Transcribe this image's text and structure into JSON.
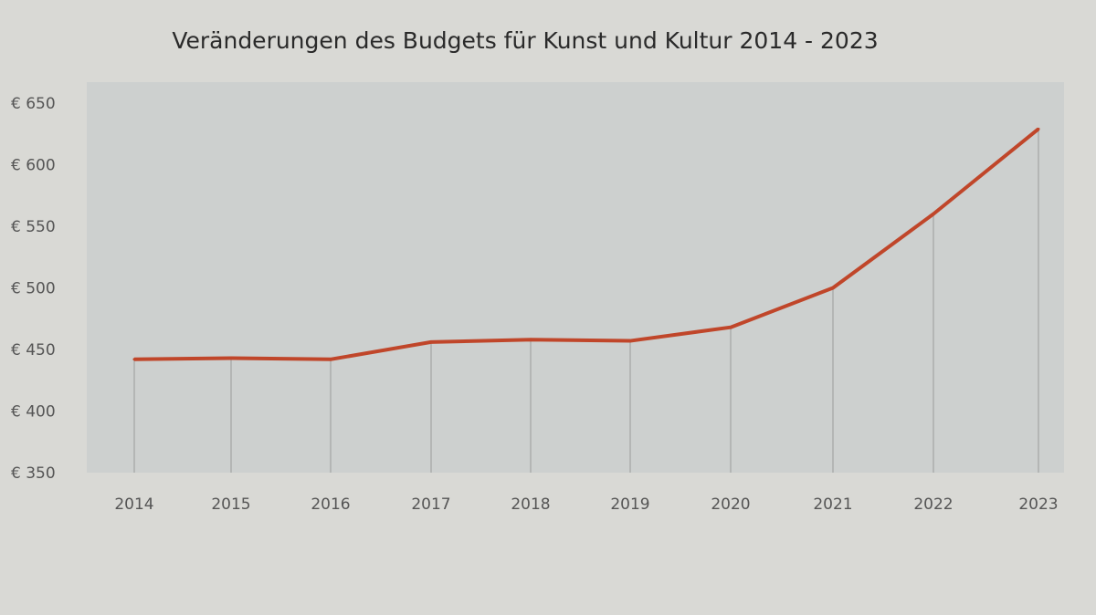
{
  "chart_data": {
    "type": "line",
    "title": "Veränderungen des Budgets für Kunst und Kultur 2014 - 2023",
    "xlabel": "",
    "ylabel": "",
    "categories": [
      "2014",
      "2015",
      "2016",
      "2017",
      "2018",
      "2019",
      "2020",
      "2021",
      "2022",
      "2023"
    ],
    "values": [
      442,
      443,
      442,
      456,
      458,
      457,
      468,
      500,
      560,
      629
    ],
    "ylim": [
      350,
      650
    ],
    "yticks": [
      350,
      400,
      450,
      500,
      550,
      600,
      650
    ],
    "ytick_labels": [
      "€ 350",
      "€ 400",
      "€ 450",
      "€ 500",
      "€ 550",
      "€ 600",
      "€ 650"
    ],
    "grid": "vertical drop lines at each category",
    "legend": "none",
    "line_color": "#c0462a",
    "plot_background": "#cdd0cf"
  }
}
